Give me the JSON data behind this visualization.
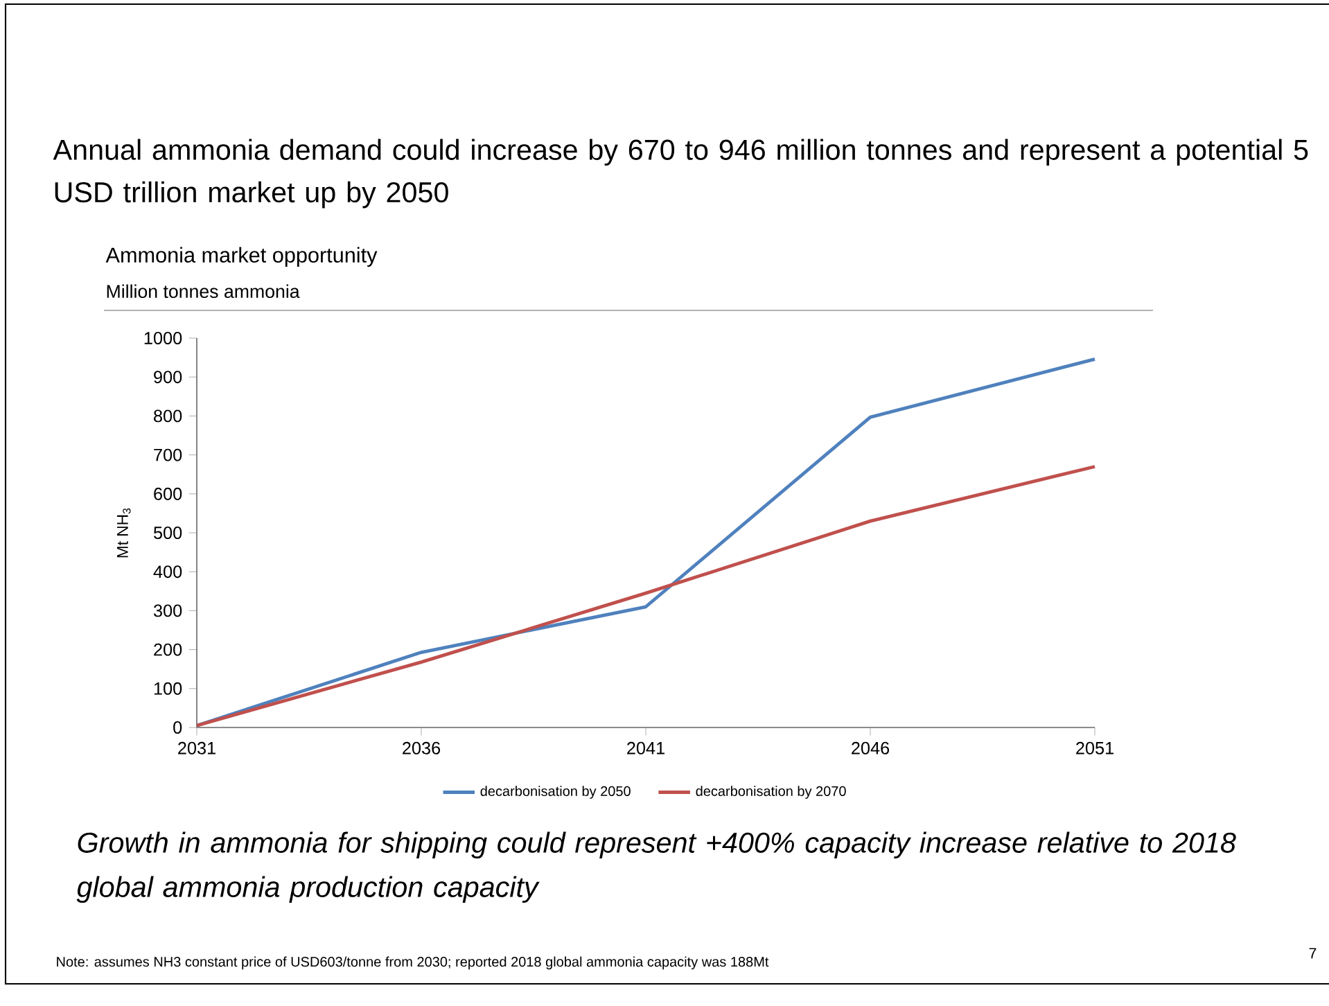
{
  "chart_data": {
    "type": "line",
    "title": "Annual ammonia demand could increase by 670 to 946 million tonnes and  represent a potential 5 USD trillion market up by 2050",
    "subtitle": "Ammonia market opportunity",
    "ylabel": "Mt NH$_{3}$",
    "x": [
      2031,
      2036,
      2041,
      2046,
      2051
    ],
    "series": [
      {
        "name": "decarbonisation by 2050",
        "color": "#4f81bd",
        "values": [
          5,
          193,
          310,
          797,
          946
        ]
      },
      {
        "name": "decarbonisation by 2070",
        "color": "#c0504d",
        "values": [
          5,
          168,
          345,
          530,
          670
        ]
      }
    ],
    "xlim": [
      2031,
      2051
    ],
    "xticks": [
      2031,
      2036,
      2041,
      2046,
      2051
    ],
    "ylim": [
      0,
      1000
    ],
    "yticks": [
      0,
      100,
      200,
      300,
      400,
      500,
      600,
      700,
      800,
      900,
      1000
    ],
    "grid": false,
    "legend": "bottom",
    "marker": "none",
    "line_style": "solid",
    "annotations": [
      "Million tonnes ammonia",
      "Growth in ammonia for shipping could represent +400% capacity increase relative to 2018 global ammonia production capacity",
      "Note: assumes NH3 constant price of USD603/tonne from 2030; reported 2018 global ammonia capacity was 188Mt",
      "7"
    ]
  }
}
